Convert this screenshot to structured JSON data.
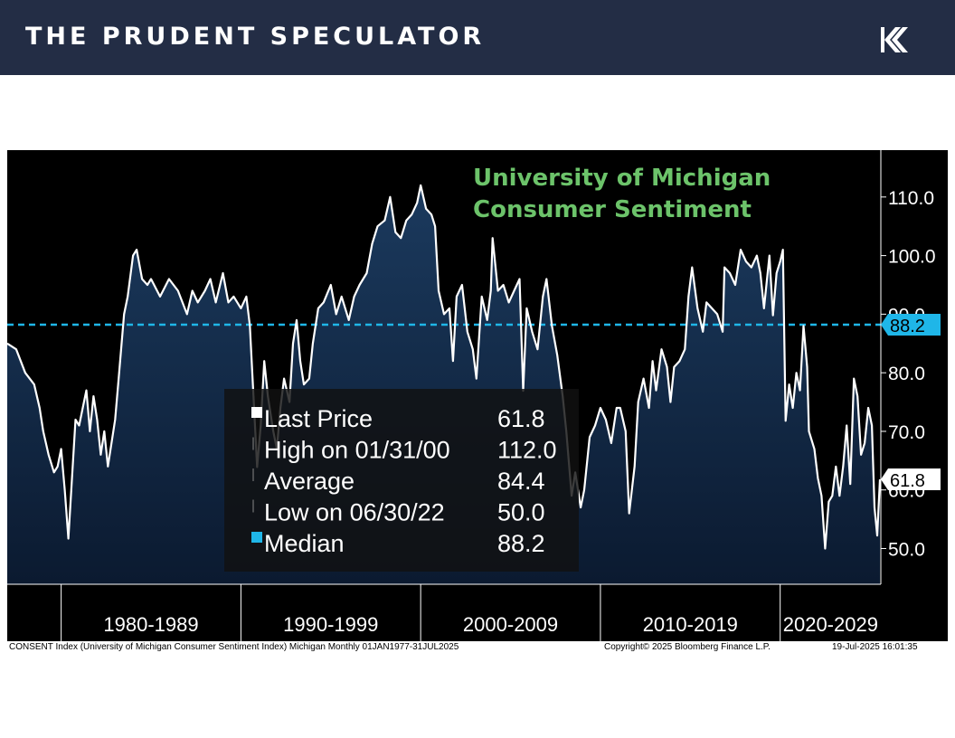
{
  "header": {
    "brand": "THE PRUDENT SPECULATOR",
    "logo_icon": "tps-k-logo-icon"
  },
  "colors": {
    "banner": "#232d45",
    "title_green": "#6cc36a",
    "median_cyan": "#1fb6e8",
    "line": "#ffffff",
    "fill_top": "#1b3a5e",
    "fill_bottom": "#0b1a30"
  },
  "footnote": {
    "index": "CONSENT Index (University of Michigan Consumer Sentiment Index) Michigan  Monthly 01JAN1977-31JUL2025",
    "copyright": "Copyright© 2025 Bloomberg Finance L.P.",
    "timestamp": "19-Jul-2025 16:01:35"
  },
  "chart_data": {
    "type": "area",
    "title": [
      "University of Michigan",
      "Consumer Sentiment"
    ],
    "xlabel": "",
    "ylabel": "",
    "xlim": [
      1977.0,
      2025.6
    ],
    "ylim": [
      43.9,
      118.0
    ],
    "y_ticks": [
      50.0,
      60.0,
      70.0,
      80.0,
      90.0,
      100.0,
      110.0
    ],
    "y_tick_labels": [
      "50.0",
      "60.0",
      "70.0",
      "80.0",
      "90.0",
      "100.0",
      "110.0"
    ],
    "x_period_labels": [
      {
        "label": "1980-1989",
        "start": 1980,
        "end": 1990
      },
      {
        "label": "1990-1999",
        "start": 1990,
        "end": 2000
      },
      {
        "label": "2000-2009",
        "start": 2000,
        "end": 2010
      },
      {
        "label": "2010-2019",
        "start": 2010,
        "end": 2020
      },
      {
        "label": "2020-2029",
        "start": 2020,
        "end": 2030
      }
    ],
    "median": {
      "value": 88.2,
      "label": "88.2"
    },
    "last": {
      "value": 61.8,
      "label": "61.8"
    },
    "legend": [
      {
        "label": "Last Price",
        "value": "61.8"
      },
      {
        "label": "High on 01/31/00",
        "value": "112.0"
      },
      {
        "label": "Average",
        "value": "84.4"
      },
      {
        "label": "Low on 06/30/22",
        "value": "50.0"
      },
      {
        "label": "Median",
        "value": "88.2"
      }
    ],
    "series": [
      {
        "values": [
          [
            1977.0,
            85
          ],
          [
            1977.5,
            84
          ],
          [
            1978.0,
            80
          ],
          [
            1978.5,
            78
          ],
          [
            1978.8,
            74
          ],
          [
            1979.0,
            70
          ],
          [
            1979.3,
            66
          ],
          [
            1979.6,
            63
          ],
          [
            1979.8,
            64
          ],
          [
            1980.0,
            67
          ],
          [
            1980.2,
            60
          ],
          [
            1980.4,
            51.7
          ],
          [
            1980.6,
            62
          ],
          [
            1980.8,
            72
          ],
          [
            1981.0,
            71
          ],
          [
            1981.2,
            74
          ],
          [
            1981.4,
            77
          ],
          [
            1981.6,
            70
          ],
          [
            1981.8,
            76
          ],
          [
            1982.0,
            72
          ],
          [
            1982.2,
            66
          ],
          [
            1982.4,
            70
          ],
          [
            1982.6,
            64
          ],
          [
            1982.8,
            68
          ],
          [
            1983.0,
            72
          ],
          [
            1983.2,
            79
          ],
          [
            1983.5,
            90
          ],
          [
            1983.7,
            93
          ],
          [
            1984.0,
            100
          ],
          [
            1984.2,
            101
          ],
          [
            1984.5,
            96
          ],
          [
            1984.8,
            95
          ],
          [
            1985.0,
            96
          ],
          [
            1985.5,
            93
          ],
          [
            1986.0,
            96
          ],
          [
            1986.5,
            94
          ],
          [
            1987.0,
            90
          ],
          [
            1987.3,
            94
          ],
          [
            1987.6,
            92
          ],
          [
            1988.0,
            94
          ],
          [
            1988.3,
            96
          ],
          [
            1988.6,
            92
          ],
          [
            1989.0,
            97
          ],
          [
            1989.3,
            92
          ],
          [
            1989.6,
            93
          ],
          [
            1990.0,
            91
          ],
          [
            1990.3,
            93
          ],
          [
            1990.5,
            88
          ],
          [
            1990.7,
            76
          ],
          [
            1990.9,
            63.9
          ],
          [
            1991.1,
            71
          ],
          [
            1991.3,
            82
          ],
          [
            1991.5,
            76
          ],
          [
            1991.8,
            70
          ],
          [
            1992.0,
            67
          ],
          [
            1992.2,
            74
          ],
          [
            1992.4,
            79
          ],
          [
            1992.7,
            75
          ],
          [
            1992.9,
            85
          ],
          [
            1993.1,
            89
          ],
          [
            1993.3,
            82
          ],
          [
            1993.5,
            78
          ],
          [
            1993.8,
            79
          ],
          [
            1994.0,
            85
          ],
          [
            1994.3,
            91
          ],
          [
            1994.6,
            92
          ],
          [
            1995.0,
            95
          ],
          [
            1995.3,
            90
          ],
          [
            1995.6,
            93
          ],
          [
            1996.0,
            89
          ],
          [
            1996.3,
            93
          ],
          [
            1996.6,
            95
          ],
          [
            1997.0,
            97
          ],
          [
            1997.3,
            102
          ],
          [
            1997.6,
            105
          ],
          [
            1998.0,
            106
          ],
          [
            1998.3,
            110
          ],
          [
            1998.6,
            104
          ],
          [
            1998.9,
            103
          ],
          [
            1999.2,
            106
          ],
          [
            1999.5,
            107
          ],
          [
            1999.8,
            109
          ],
          [
            2000.0,
            112.0
          ],
          [
            2000.3,
            108
          ],
          [
            2000.6,
            107
          ],
          [
            2000.8,
            105
          ],
          [
            2001.0,
            94
          ],
          [
            2001.3,
            90
          ],
          [
            2001.6,
            91
          ],
          [
            2001.8,
            82
          ],
          [
            2002.0,
            93
          ],
          [
            2002.3,
            95
          ],
          [
            2002.6,
            87
          ],
          [
            2002.9,
            84
          ],
          [
            2003.1,
            79
          ],
          [
            2003.4,
            93
          ],
          [
            2003.7,
            89
          ],
          [
            2003.9,
            94
          ],
          [
            2004.0,
            103
          ],
          [
            2004.3,
            94
          ],
          [
            2004.6,
            95
          ],
          [
            2004.9,
            92
          ],
          [
            2005.2,
            94
          ],
          [
            2005.5,
            96
          ],
          [
            2005.7,
            76.9
          ],
          [
            2005.9,
            91
          ],
          [
            2006.2,
            87
          ],
          [
            2006.5,
            84
          ],
          [
            2006.8,
            93
          ],
          [
            2007.0,
            96
          ],
          [
            2007.3,
            88
          ],
          [
            2007.6,
            83
          ],
          [
            2007.9,
            76
          ],
          [
            2008.1,
            70
          ],
          [
            2008.4,
            59
          ],
          [
            2008.6,
            63
          ],
          [
            2008.9,
            57
          ],
          [
            2009.1,
            60
          ],
          [
            2009.4,
            69
          ],
          [
            2009.7,
            71
          ],
          [
            2010.0,
            74
          ],
          [
            2010.3,
            72
          ],
          [
            2010.6,
            68
          ],
          [
            2010.9,
            74
          ],
          [
            2011.1,
            74
          ],
          [
            2011.4,
            70
          ],
          [
            2011.6,
            56
          ],
          [
            2011.9,
            64
          ],
          [
            2012.1,
            75
          ],
          [
            2012.4,
            79
          ],
          [
            2012.7,
            74
          ],
          [
            2012.9,
            82
          ],
          [
            2013.1,
            77
          ],
          [
            2013.4,
            84
          ],
          [
            2013.7,
            81
          ],
          [
            2013.9,
            75
          ],
          [
            2014.1,
            81
          ],
          [
            2014.4,
            82
          ],
          [
            2014.7,
            84
          ],
          [
            2014.9,
            93
          ],
          [
            2015.1,
            98
          ],
          [
            2015.4,
            91
          ],
          [
            2015.7,
            87
          ],
          [
            2015.9,
            92
          ],
          [
            2016.2,
            91
          ],
          [
            2016.5,
            90
          ],
          [
            2016.8,
            87
          ],
          [
            2016.9,
            98
          ],
          [
            2017.2,
            97
          ],
          [
            2017.5,
            95
          ],
          [
            2017.8,
            101
          ],
          [
            2018.1,
            99
          ],
          [
            2018.4,
            98
          ],
          [
            2018.7,
            100
          ],
          [
            2018.9,
            97
          ],
          [
            2019.1,
            91
          ],
          [
            2019.4,
            100
          ],
          [
            2019.6,
            89.8
          ],
          [
            2019.8,
            97
          ],
          [
            2020.0,
            99
          ],
          [
            2020.15,
            101
          ],
          [
            2020.3,
            71.8
          ],
          [
            2020.5,
            78
          ],
          [
            2020.7,
            74
          ],
          [
            2020.9,
            80
          ],
          [
            2021.1,
            77
          ],
          [
            2021.3,
            88
          ],
          [
            2021.5,
            81
          ],
          [
            2021.6,
            70
          ],
          [
            2021.9,
            67
          ],
          [
            2022.1,
            62
          ],
          [
            2022.3,
            59
          ],
          [
            2022.5,
            50.0
          ],
          [
            2022.7,
            58
          ],
          [
            2022.9,
            59
          ],
          [
            2023.1,
            64
          ],
          [
            2023.3,
            59
          ],
          [
            2023.5,
            64
          ],
          [
            2023.7,
            71
          ],
          [
            2023.9,
            61
          ],
          [
            2024.1,
            79
          ],
          [
            2024.3,
            76
          ],
          [
            2024.5,
            66
          ],
          [
            2024.7,
            68
          ],
          [
            2024.9,
            74
          ],
          [
            2025.1,
            71
          ],
          [
            2025.25,
            57
          ],
          [
            2025.4,
            52.2
          ],
          [
            2025.55,
            61.8
          ]
        ]
      }
    ]
  }
}
